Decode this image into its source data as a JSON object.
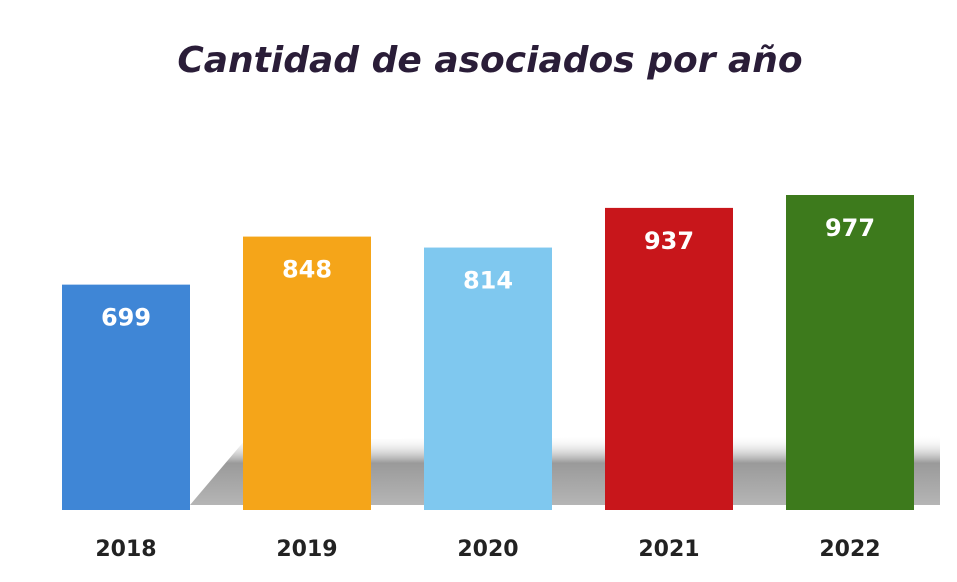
{
  "chart_data": {
    "type": "bar",
    "title": "Cantidad de asociados por año",
    "categories": [
      "2018",
      "2019",
      "2020",
      "2021",
      "2022"
    ],
    "values": [
      699,
      848,
      814,
      937,
      977
    ],
    "colors": [
      "#3f86d6",
      "#f5a519",
      "#7fc8ef",
      "#c8161b",
      "#3d7a1c"
    ]
  }
}
